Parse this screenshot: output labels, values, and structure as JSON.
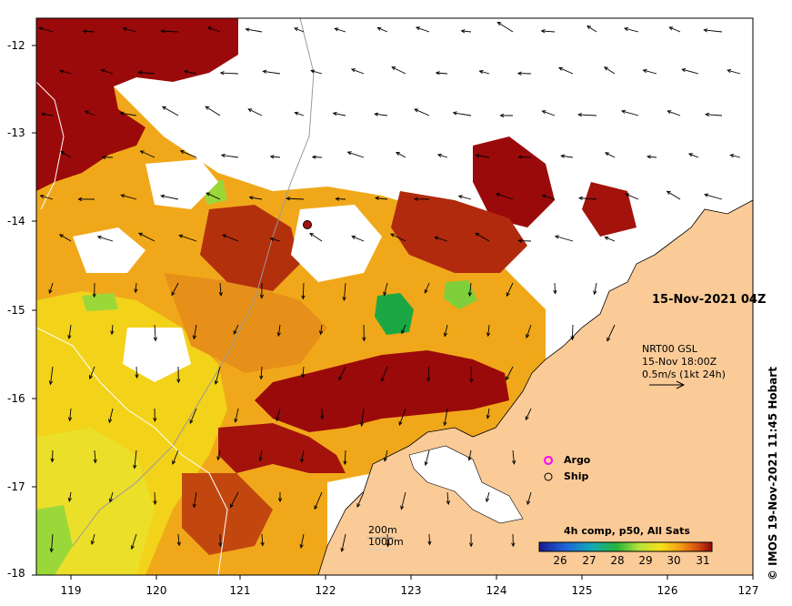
{
  "map": {
    "title_time": "15-Nov-2021 04Z",
    "credit": "© IMOS 19-Nov-2021 11:45 Hobart",
    "lat_ticks": [
      "-12",
      "-13",
      "-14",
      "-15",
      "-16",
      "-17",
      "-18"
    ],
    "lon_ticks": [
      "119",
      "120",
      "121",
      "122",
      "123",
      "124",
      "125",
      "126",
      "127"
    ],
    "current_model": {
      "name": "NRT00 GSL",
      "time": "15-Nov 18:00Z",
      "scale": "0.5m/s (1kt 24h)"
    },
    "markers": {
      "argo": "Argo",
      "ship": "Ship"
    },
    "isobaths": {
      "shallow": "200m",
      "deep": "1000m"
    },
    "colorbar": {
      "title": "4h comp, p50, All Sats",
      "ticks": [
        "26",
        "27",
        "28",
        "29",
        "30",
        "31"
      ],
      "min": 25.5,
      "max": 31.5
    },
    "colors": {
      "land": "#fbcb97",
      "hot": "#9b0a0a",
      "warm": "#e08a10",
      "mid": "#f3d21a",
      "cool": "#7fcf3a",
      "cold": "#1ba844",
      "cloud": "#ffffff",
      "argo": "#ff00ff"
    }
  }
}
